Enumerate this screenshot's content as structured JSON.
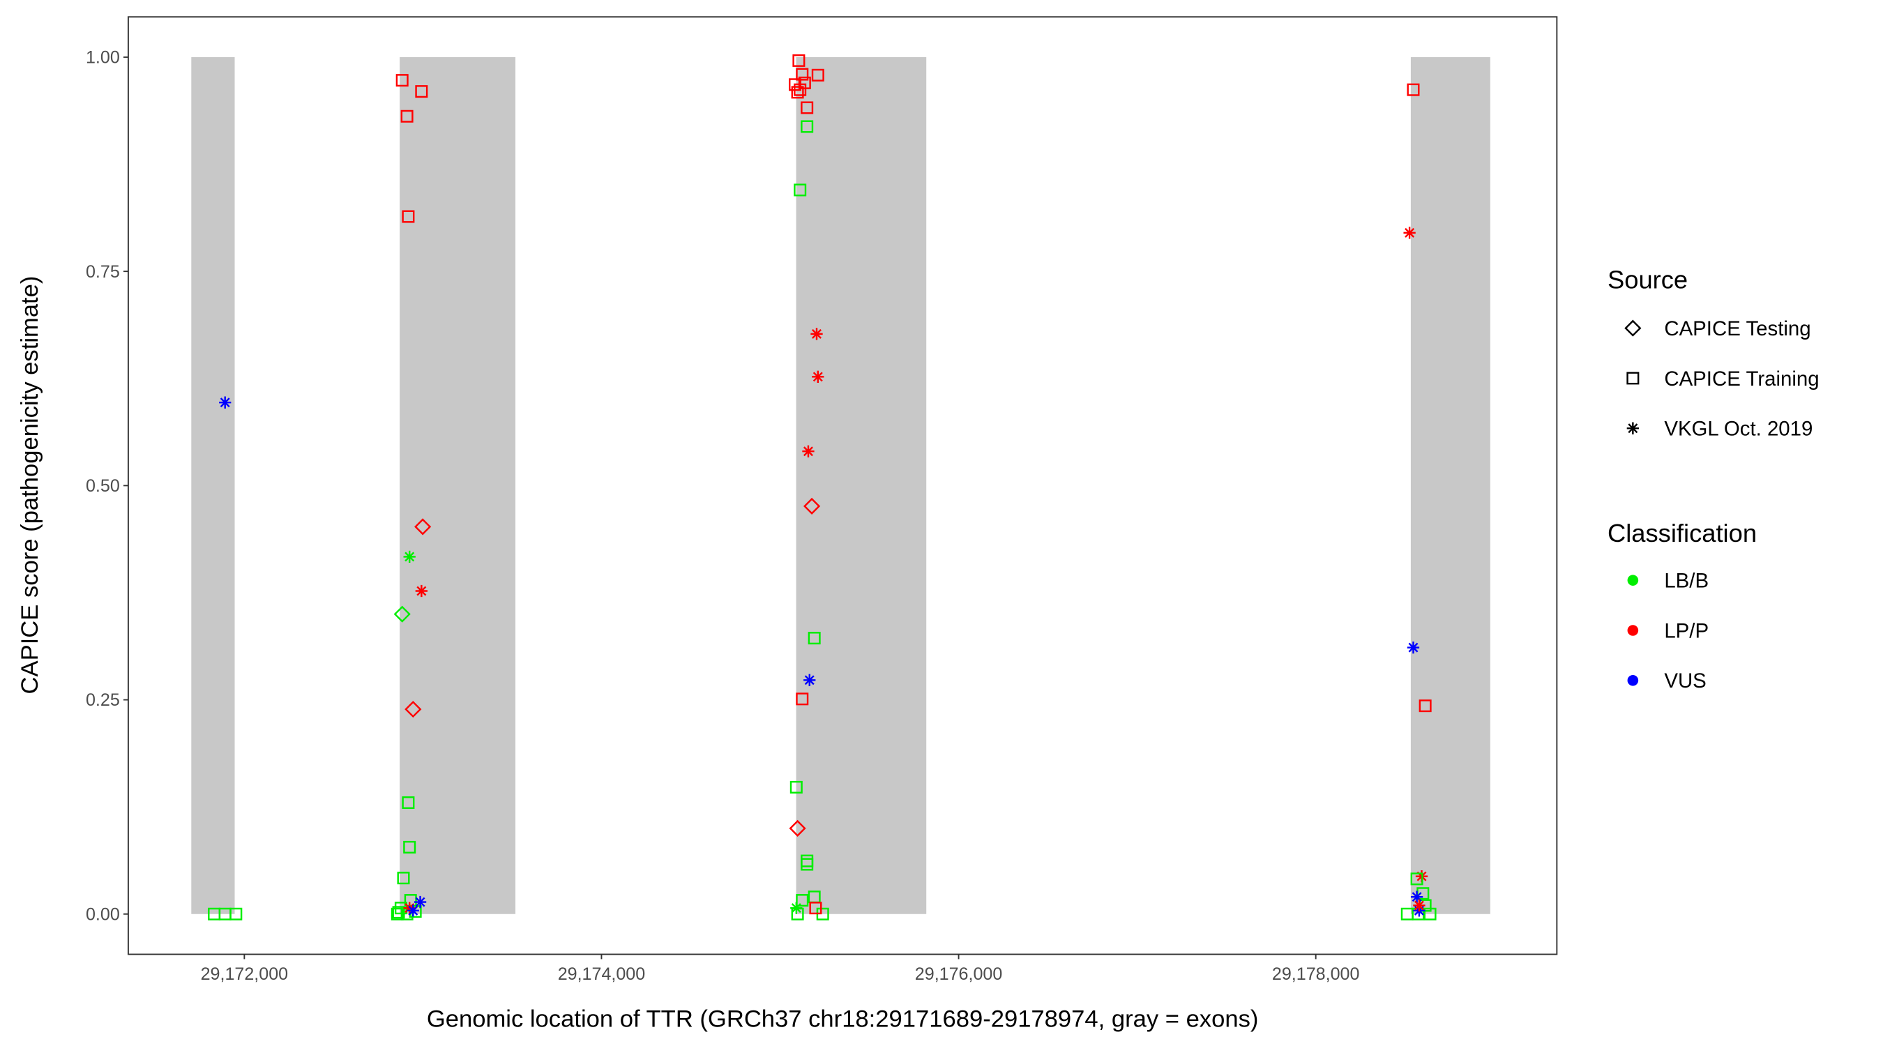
{
  "chart_data": {
    "type": "scatter",
    "xlabel": "Genomic location of TTR (GRCh37 chr18:29171689-29178974, gray = exons)",
    "ylabel": "CAPICE score (pathogenicity estimate)",
    "xlim": [
      29171350,
      29179350
    ],
    "ylim": [
      -0.047,
      1.047
    ],
    "xticks": [
      29172000,
      29174000,
      29176000,
      29178000
    ],
    "xtick_labels": [
      "29,172,000",
      "29,174,000",
      "29,176,000",
      "29,178,000"
    ],
    "yticks": [
      0,
      0.25,
      0.5,
      0.75,
      1
    ],
    "ytick_labels": [
      "0.00",
      "0.25",
      "0.50",
      "0.75",
      "1.00"
    ],
    "grid": false,
    "exon_color": "#c8c8c8",
    "exons": [
      [
        29171703,
        29171946
      ],
      [
        29172870,
        29173518
      ],
      [
        29175090,
        29175819
      ],
      [
        29178532,
        29178977
      ]
    ],
    "legend_placement": "right",
    "legend_source": {
      "title": "Source",
      "items": [
        {
          "key": "testing",
          "label": "CAPICE Testing",
          "shape": "diamond"
        },
        {
          "key": "training",
          "label": "CAPICE Training",
          "shape": "square"
        },
        {
          "key": "vkgl",
          "label": "VKGL Oct. 2019",
          "shape": "asterisk"
        }
      ]
    },
    "legend_class": {
      "title": "Classification",
      "items": [
        {
          "key": "LB/B",
          "label": "LB/B",
          "color": "#00ee00"
        },
        {
          "key": "LP/P",
          "label": "LP/P",
          "color": "#ff0000"
        },
        {
          "key": "VUS",
          "label": "VUS",
          "color": "#0000ff"
        }
      ]
    },
    "points_fields": [
      "position",
      "score",
      "source",
      "classification"
    ],
    "points": [
      [
        29171892,
        0.597,
        "vkgl",
        "VUS"
      ],
      [
        29171831,
        0,
        "training",
        "LB/B"
      ],
      [
        29171892,
        0,
        "training",
        "LB/B"
      ],
      [
        29171953,
        0,
        "training",
        "LB/B"
      ],
      [
        29172884,
        0.973,
        "training",
        "LP/P"
      ],
      [
        29172992,
        0.96,
        "training",
        "LP/P"
      ],
      [
        29172911,
        0.931,
        "training",
        "LP/P"
      ],
      [
        29172918,
        0.814,
        "training",
        "LP/P"
      ],
      [
        29172999,
        0.452,
        "testing",
        "LP/P"
      ],
      [
        29172945,
        0.239,
        "testing",
        "LP/P"
      ],
      [
        29172925,
        0.417,
        "vkgl",
        "LB/B"
      ],
      [
        29172992,
        0.377,
        "vkgl",
        "LP/P"
      ],
      [
        29172884,
        0.35,
        "testing",
        "LB/B"
      ],
      [
        29172918,
        0.13,
        "training",
        "LB/B"
      ],
      [
        29172925,
        0.078,
        "training",
        "LB/B"
      ],
      [
        29172891,
        0.042,
        "training",
        "LB/B"
      ],
      [
        29172931,
        0.016,
        "training",
        "LB/B"
      ],
      [
        29172857,
        0,
        "training",
        "LB/B"
      ],
      [
        29172877,
        0.007,
        "training",
        "LB/B"
      ],
      [
        29172911,
        0,
        "training",
        "LB/B"
      ],
      [
        29172958,
        0.003,
        "training",
        "LB/B"
      ],
      [
        29172864,
        0.002,
        "training",
        "LB/B"
      ],
      [
        29172925,
        0.007,
        "vkgl",
        "LP/P"
      ],
      [
        29172985,
        0.014,
        "vkgl",
        "VUS"
      ],
      [
        29172945,
        0.004,
        "vkgl",
        "VUS"
      ],
      [
        29175105,
        0.996,
        "training",
        "LP/P"
      ],
      [
        29175124,
        0.98,
        "training",
        "LP/P"
      ],
      [
        29175084,
        0.968,
        "training",
        "LP/P"
      ],
      [
        29175138,
        0.97,
        "training",
        "LP/P"
      ],
      [
        29175212,
        0.979,
        "training",
        "LP/P"
      ],
      [
        29175098,
        0.959,
        "training",
        "LP/P"
      ],
      [
        29175151,
        0.941,
        "training",
        "LP/P"
      ],
      [
        29175112,
        0.962,
        "training",
        "LP/P"
      ],
      [
        29175151,
        0.919,
        "training",
        "LB/B"
      ],
      [
        29175112,
        0.845,
        "training",
        "LB/B"
      ],
      [
        29175192,
        0.322,
        "training",
        "LB/B"
      ],
      [
        29175091,
        0.148,
        "training",
        "LB/B"
      ],
      [
        29175151,
        0.062,
        "training",
        "LB/B"
      ],
      [
        29175151,
        0.058,
        "training",
        "LB/B"
      ],
      [
        29175192,
        0.02,
        "training",
        "LB/B"
      ],
      [
        29175124,
        0.016,
        "training",
        "LB/B"
      ],
      [
        29175098,
        0,
        "training",
        "LB/B"
      ],
      [
        29175239,
        0,
        "training",
        "LB/B"
      ],
      [
        29175205,
        0.677,
        "vkgl",
        "LP/P"
      ],
      [
        29175212,
        0.627,
        "vkgl",
        "LP/P"
      ],
      [
        29175158,
        0.54,
        "vkgl",
        "LP/P"
      ],
      [
        29175178,
        0.476,
        "testing",
        "LP/P"
      ],
      [
        29175098,
        0.1,
        "testing",
        "LP/P"
      ],
      [
        29175165,
        0.273,
        "vkgl",
        "VUS"
      ],
      [
        29175124,
        0.251,
        "training",
        "LP/P"
      ],
      [
        29175199,
        0.007,
        "training",
        "LP/P"
      ],
      [
        29175091,
        0.007,
        "vkgl",
        "LB/B"
      ],
      [
        29178546,
        0.962,
        "training",
        "LP/P"
      ],
      [
        29178525,
        0.795,
        "vkgl",
        "LP/P"
      ],
      [
        29178546,
        0.311,
        "vkgl",
        "VUS"
      ],
      [
        29178613,
        0.243,
        "training",
        "LP/P"
      ],
      [
        29178593,
        0.044,
        "vkgl",
        "LP/P"
      ],
      [
        29178566,
        0.041,
        "training",
        "LB/B"
      ],
      [
        29178600,
        0.024,
        "training",
        "LB/B"
      ],
      [
        29178512,
        0,
        "training",
        "LB/B"
      ],
      [
        29178573,
        0,
        "training",
        "LB/B"
      ],
      [
        29178640,
        0,
        "training",
        "LB/B"
      ],
      [
        29178613,
        0.01,
        "training",
        "LB/B"
      ],
      [
        29178566,
        0.02,
        "vkgl",
        "VUS"
      ],
      [
        29178579,
        0.004,
        "vkgl",
        "VUS"
      ],
      [
        29178579,
        0.01,
        "vkgl",
        "LP/P"
      ]
    ]
  }
}
